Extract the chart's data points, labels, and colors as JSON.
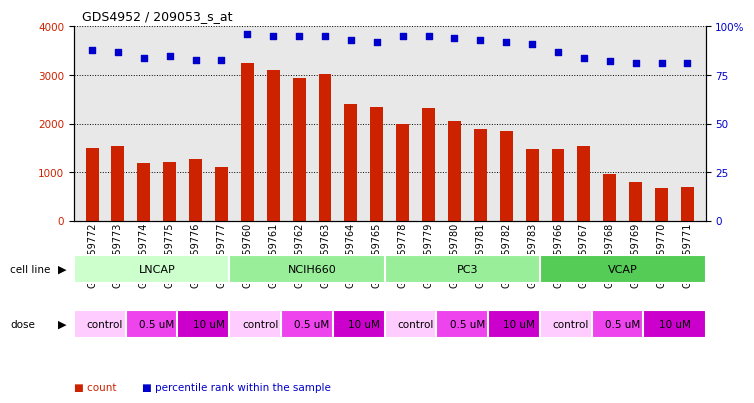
{
  "title": "GDS4952 / 209053_s_at",
  "samples": [
    "GSM1359772",
    "GSM1359773",
    "GSM1359774",
    "GSM1359775",
    "GSM1359776",
    "GSM1359777",
    "GSM1359760",
    "GSM1359761",
    "GSM1359762",
    "GSM1359763",
    "GSM1359764",
    "GSM1359765",
    "GSM1359778",
    "GSM1359779",
    "GSM1359780",
    "GSM1359781",
    "GSM1359782",
    "GSM1359783",
    "GSM1359766",
    "GSM1359767",
    "GSM1359768",
    "GSM1359769",
    "GSM1359770",
    "GSM1359771"
  ],
  "counts": [
    1500,
    1550,
    1200,
    1220,
    1270,
    1100,
    3250,
    3100,
    2950,
    3020,
    2400,
    2350,
    2000,
    2330,
    2050,
    1900,
    1850,
    1480,
    1480,
    1550,
    970,
    800,
    680,
    700
  ],
  "percentiles": [
    88,
    87,
    84,
    85,
    83,
    83,
    96,
    95,
    95,
    95,
    93,
    92,
    95,
    95,
    94,
    93,
    92,
    91,
    87,
    84,
    82,
    81,
    81,
    81
  ],
  "bar_color": "#cc2200",
  "dot_color": "#0000cc",
  "ylim_left": [
    0,
    4000
  ],
  "ylim_right": [
    0,
    100
  ],
  "yticks_left": [
    0,
    1000,
    2000,
    3000,
    4000
  ],
  "yticks_right": [
    0,
    25,
    50,
    75,
    100
  ],
  "cell_line_defs": [
    {
      "label": "LNCAP",
      "start": 0,
      "end": 6,
      "color": "#ccffcc"
    },
    {
      "label": "NCIH660",
      "start": 6,
      "end": 12,
      "color": "#99ee99"
    },
    {
      "label": "PC3",
      "start": 12,
      "end": 18,
      "color": "#99ee99"
    },
    {
      "label": "VCAP",
      "start": 18,
      "end": 24,
      "color": "#55cc55"
    }
  ],
  "dose_defs": [
    {
      "label": "control",
      "start": 0,
      "end": 2,
      "color": "#ffccff"
    },
    {
      "label": "0.5 uM",
      "start": 2,
      "end": 4,
      "color": "#ee44ee"
    },
    {
      "label": "10 uM",
      "start": 4,
      "end": 6,
      "color": "#cc00cc"
    },
    {
      "label": "control",
      "start": 6,
      "end": 8,
      "color": "#ffccff"
    },
    {
      "label": "0.5 uM",
      "start": 8,
      "end": 10,
      "color": "#ee44ee"
    },
    {
      "label": "10 uM",
      "start": 10,
      "end": 12,
      "color": "#cc00cc"
    },
    {
      "label": "control",
      "start": 12,
      "end": 14,
      "color": "#ffccff"
    },
    {
      "label": "0.5 uM",
      "start": 14,
      "end": 16,
      "color": "#ee44ee"
    },
    {
      "label": "10 uM",
      "start": 16,
      "end": 18,
      "color": "#cc00cc"
    },
    {
      "label": "control",
      "start": 18,
      "end": 20,
      "color": "#ffccff"
    },
    {
      "label": "0.5 uM",
      "start": 20,
      "end": 22,
      "color": "#ee44ee"
    },
    {
      "label": "10 uM",
      "start": 22,
      "end": 24,
      "color": "#cc00cc"
    }
  ],
  "label_fontsize": 7,
  "tick_fontsize": 7.5,
  "bg_color": "#e8e8e8"
}
